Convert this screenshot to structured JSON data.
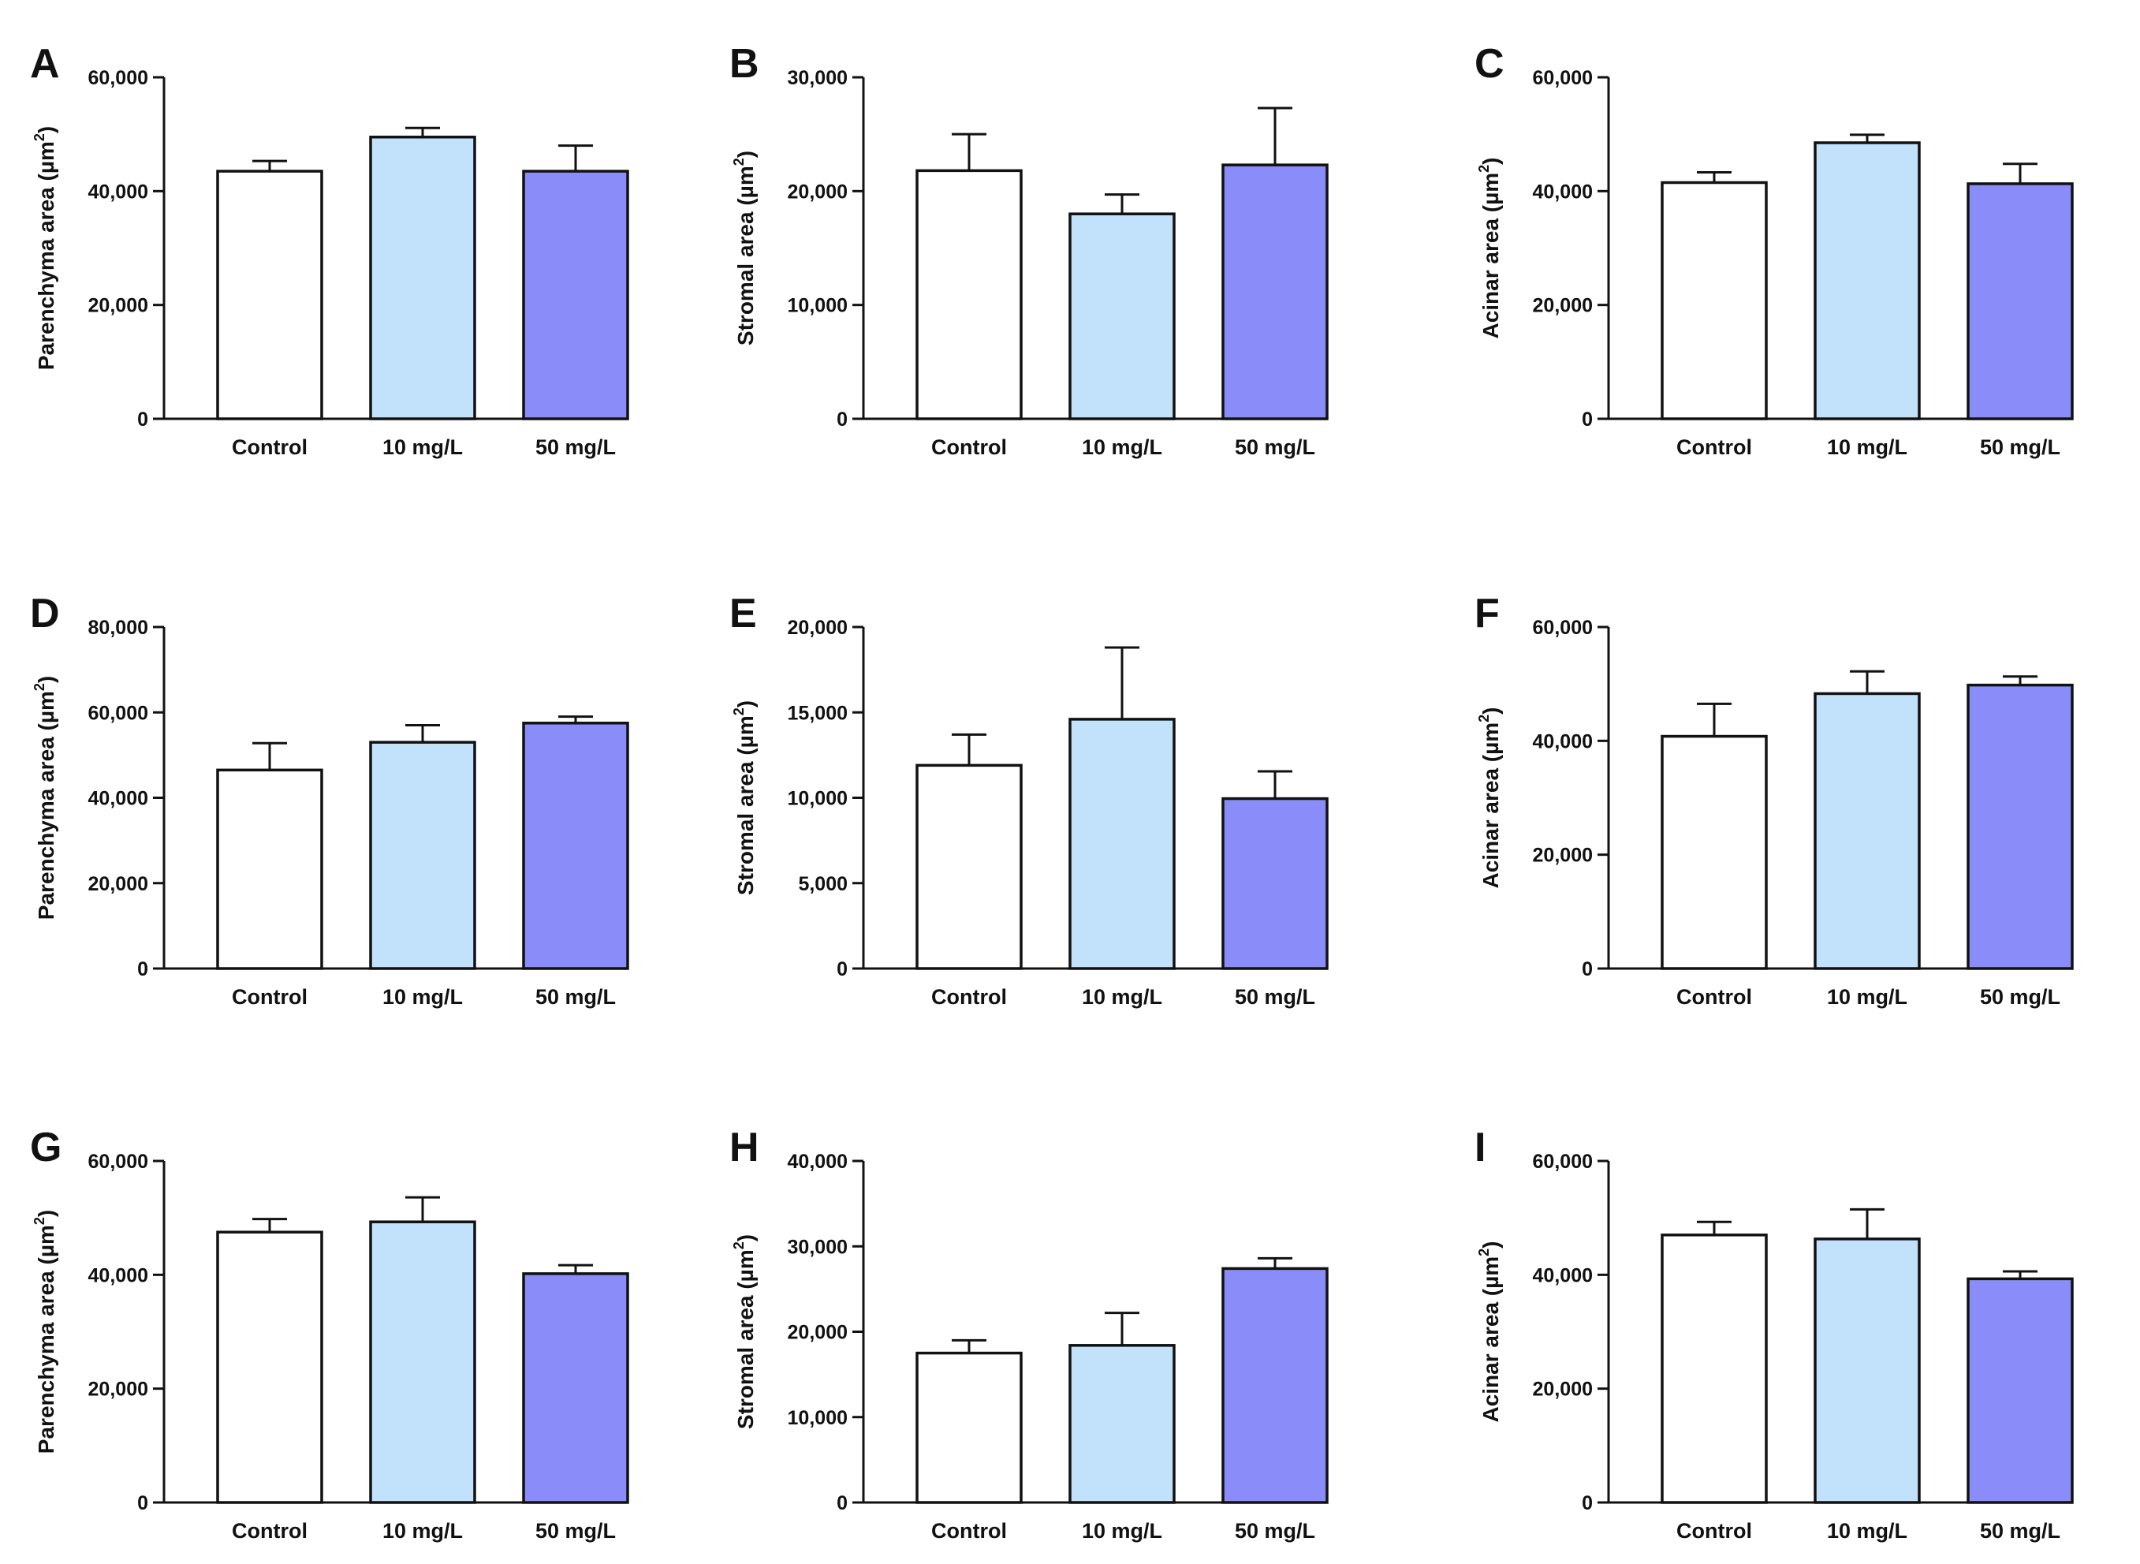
{
  "chart_data": [
    {
      "panel": "A",
      "type": "bar",
      "ylabel": "Parenchyma area (µm²)",
      "ylabel_main": "Parenchyma area (µm",
      "ylabel_sup": "2",
      "ylabel_end": ")",
      "categories": [
        "Control",
        "10 mg/L",
        "50 mg/L"
      ],
      "values": [
        43500,
        49500,
        43500
      ],
      "errors": [
        1800,
        1600,
        4500
      ],
      "ylim": [
        0,
        60000
      ],
      "yticks": [
        "0",
        "20,000",
        "40,000",
        "60,000"
      ],
      "ytick_values": [
        0,
        20000,
        40000,
        60000
      ]
    },
    {
      "panel": "B",
      "type": "bar",
      "ylabel": "Stromal area (µm²)",
      "ylabel_main": "Stromal area (µm",
      "ylabel_sup": "2",
      "ylabel_end": ")",
      "categories": [
        "Control",
        "10 mg/L",
        "50 mg/L"
      ],
      "values": [
        21800,
        18000,
        22300
      ],
      "errors": [
        3200,
        1700,
        5000
      ],
      "ylim": [
        0,
        30000
      ],
      "yticks": [
        "0",
        "10,000",
        "20,000",
        "30,000"
      ],
      "ytick_values": [
        0,
        10000,
        20000,
        30000
      ]
    },
    {
      "panel": "C",
      "type": "bar",
      "ylabel": "Acinar area (µm²)",
      "ylabel_main": "Acinar area (µm",
      "ylabel_sup": "2",
      "ylabel_end": ")",
      "categories": [
        "Control",
        "10 mg/L",
        "50 mg/L"
      ],
      "values": [
        41500,
        48500,
        41300
      ],
      "errors": [
        1800,
        1400,
        3500
      ],
      "ylim": [
        0,
        60000
      ],
      "yticks": [
        "0",
        "20,000",
        "40,000",
        "60,000"
      ],
      "ytick_values": [
        0,
        20000,
        40000,
        60000
      ]
    },
    {
      "panel": "D",
      "type": "bar",
      "ylabel": "Parenchyma area (µm²)",
      "ylabel_main": "Parenchyma area (µm",
      "ylabel_sup": "2",
      "ylabel_end": ")",
      "categories": [
        "Control",
        "10 mg/L",
        "50 mg/L"
      ],
      "values": [
        46500,
        53000,
        57500
      ],
      "errors": [
        6300,
        4000,
        1500
      ],
      "ylim": [
        0,
        80000
      ],
      "yticks": [
        "0",
        "20,000",
        "40,000",
        "60,000",
        "80,000"
      ],
      "ytick_values": [
        0,
        20000,
        40000,
        60000,
        80000
      ]
    },
    {
      "panel": "E",
      "type": "bar",
      "ylabel": "Stromal area (µm²)",
      "ylabel_main": "Stromal area (µm",
      "ylabel_sup": "2",
      "ylabel_end": ")",
      "categories": [
        "Control",
        "10 mg/L",
        "50 mg/L"
      ],
      "values": [
        11900,
        14600,
        9950
      ],
      "errors": [
        1800,
        4200,
        1600
      ],
      "ylim": [
        0,
        20000
      ],
      "yticks": [
        "0",
        "5,000",
        "10,000",
        "15,000",
        "20,000"
      ],
      "ytick_values": [
        0,
        5000,
        10000,
        15000,
        20000
      ]
    },
    {
      "panel": "F",
      "type": "bar",
      "ylabel": "Acinar area (µm²)",
      "ylabel_main": "Acinar area (µm",
      "ylabel_sup": "2",
      "ylabel_end": ")",
      "categories": [
        "Control",
        "10 mg/L",
        "50 mg/L"
      ],
      "values": [
        40800,
        48300,
        49800
      ],
      "errors": [
        5700,
        3900,
        1500
      ],
      "ylim": [
        0,
        60000
      ],
      "yticks": [
        "0",
        "20,000",
        "40,000",
        "60,000"
      ],
      "ytick_values": [
        0,
        20000,
        40000,
        60000
      ]
    },
    {
      "panel": "G",
      "type": "bar",
      "ylabel": "Parenchyma area (µm²)",
      "ylabel_main": "Parenchyma area (µm",
      "ylabel_sup": "2",
      "ylabel_end": ")",
      "categories": [
        "Control",
        "10 mg/L",
        "50 mg/L"
      ],
      "values": [
        47500,
        49300,
        40200
      ],
      "errors": [
        2300,
        4300,
        1500
      ],
      "ylim": [
        0,
        60000
      ],
      "yticks": [
        "0",
        "20,000",
        "40,000",
        "60,000"
      ],
      "ytick_values": [
        0,
        20000,
        40000,
        60000
      ]
    },
    {
      "panel": "H",
      "type": "bar",
      "ylabel": "Stromal area (µm²)",
      "ylabel_main": "Stromal area (µm",
      "ylabel_sup": "2",
      "ylabel_end": ")",
      "categories": [
        "Control",
        "10 mg/L",
        "50 mg/L"
      ],
      "values": [
        17500,
        18400,
        27400
      ],
      "errors": [
        1500,
        3800,
        1200
      ],
      "ylim": [
        0,
        40000
      ],
      "yticks": [
        "0",
        "10,000",
        "20,000",
        "30,000",
        "40,000"
      ],
      "ytick_values": [
        0,
        10000,
        20000,
        30000,
        40000
      ]
    },
    {
      "panel": "I",
      "type": "bar",
      "ylabel": "Acinar area (µm²)",
      "ylabel_main": "Acinar area (µm",
      "ylabel_sup": "2",
      "ylabel_end": ")",
      "categories": [
        "Control",
        "10 mg/L",
        "50 mg/L"
      ],
      "values": [
        47000,
        46300,
        39300
      ],
      "errors": [
        2300,
        5200,
        1300
      ],
      "ylim": [
        0,
        60000
      ],
      "yticks": [
        "0",
        "20,000",
        "40,000",
        "60,000"
      ],
      "ytick_values": [
        0,
        20000,
        40000,
        60000
      ]
    }
  ],
  "colors": {
    "control": "#ffffff",
    "low_dose": "#c2e1fa",
    "high_dose": "#8a8cf9",
    "ink": "#111111"
  }
}
